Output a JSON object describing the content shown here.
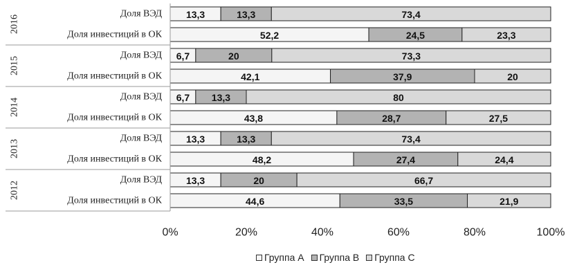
{
  "chart_data": {
    "type": "bar",
    "orientation": "horizontal",
    "stacked": true,
    "percent": true,
    "title": "",
    "xlabel": "",
    "ylabel": "",
    "xlim": [
      0,
      100
    ],
    "x_ticks": [
      "0%",
      "20%",
      "40%",
      "60%",
      "80%",
      "100%"
    ],
    "grid": false,
    "legend_position": "bottom",
    "groups": [
      {
        "year": "2016",
        "rows": [
          {
            "label": "Доля ВЭД",
            "values": [
              13.3,
              13.3,
              73.4
            ],
            "labels": [
              "13,3",
              "13,3",
              "73,4"
            ]
          },
          {
            "label": "Доля инвестиций в ОК",
            "values": [
              52.2,
              24.5,
              23.3
            ],
            "labels": [
              "52,2",
              "24,5",
              "23,3"
            ]
          }
        ]
      },
      {
        "year": "2015",
        "rows": [
          {
            "label": "Доля ВЭД",
            "values": [
              6.7,
              20,
              73.3
            ],
            "labels": [
              "6,7",
              "20",
              "73,3"
            ]
          },
          {
            "label": "Доля инвестиций в ОК",
            "values": [
              42.1,
              37.9,
              20
            ],
            "labels": [
              "42,1",
              "37,9",
              "20"
            ]
          }
        ]
      },
      {
        "year": "2014",
        "rows": [
          {
            "label": "Доля ВЭД",
            "values": [
              6.7,
              13.3,
              80
            ],
            "labels": [
              "6,7",
              "13,3",
              "80"
            ]
          },
          {
            "label": "Доля инвестиций в ОК",
            "values": [
              43.8,
              28.7,
              27.5
            ],
            "labels": [
              "43,8",
              "28,7",
              "27,5"
            ]
          }
        ]
      },
      {
        "year": "2013",
        "rows": [
          {
            "label": "Доля ВЭД",
            "values": [
              13.3,
              13.3,
              73.4
            ],
            "labels": [
              "13,3",
              "13,3",
              "73,4"
            ]
          },
          {
            "label": "Доля инвестиций в ОК",
            "values": [
              48.2,
              27.4,
              24.4
            ],
            "labels": [
              "48,2",
              "27,4",
              "24,4"
            ]
          }
        ]
      },
      {
        "year": "2012",
        "rows": [
          {
            "label": "Доля ВЭД",
            "values": [
              13.3,
              20,
              66.7
            ],
            "labels": [
              "13,3",
              "20",
              "66,7"
            ]
          },
          {
            "label": "Доля инвестиций в ОК",
            "values": [
              44.6,
              33.5,
              21.9
            ],
            "labels": [
              "44,6",
              "33,5",
              "21,9"
            ]
          }
        ]
      }
    ],
    "series": [
      {
        "name": "Группа А",
        "color": "#f5f5f5"
      },
      {
        "name": "Группа В",
        "color": "#b3b3b3"
      },
      {
        "name": "Группа С",
        "color": "#d9d9d9"
      }
    ]
  }
}
